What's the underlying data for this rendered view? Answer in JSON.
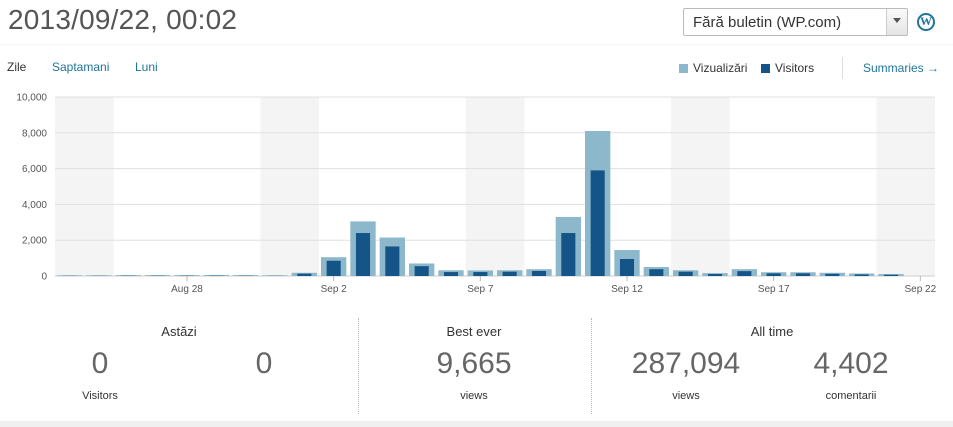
{
  "header": {
    "datetime": "2013/09/22, 00:02",
    "blog_select": "Fără buletin (WP.com)",
    "wp_icon": "wordpress-icon"
  },
  "tabs": [
    {
      "label": "Zile",
      "active": true
    },
    {
      "label": "Saptamani",
      "active": false
    },
    {
      "label": "Luni",
      "active": false
    }
  ],
  "legend": {
    "views": "Vizualizări",
    "visitors": "Visitors",
    "summaries": "Summaries"
  },
  "colors": {
    "views": "#8db7cb",
    "visitors": "#145487",
    "weekend": "#f4f4f4",
    "grid": "#e0e0e0"
  },
  "chart_data": {
    "type": "bar",
    "x_tick_labels": [
      "Aug 28",
      "Sep 2",
      "Sep 7",
      "Sep 12",
      "Sep 17",
      "Sep 22"
    ],
    "y_tick_labels": [
      "0",
      "2,000",
      "4,000",
      "6,000",
      "8,000",
      "10,000"
    ],
    "ylim": [
      0,
      10000
    ],
    "grid": true,
    "legend_placement": "top-right",
    "categories": [
      "Aug 24",
      "Aug 25",
      "Aug 26",
      "Aug 27",
      "Aug 28",
      "Aug 29",
      "Aug 30",
      "Aug 31",
      "Sep 1",
      "Sep 2",
      "Sep 3",
      "Sep 4",
      "Sep 5",
      "Sep 6",
      "Sep 7",
      "Sep 8",
      "Sep 9",
      "Sep 10",
      "Sep 11",
      "Sep 12",
      "Sep 13",
      "Sep 14",
      "Sep 15",
      "Sep 16",
      "Sep 17",
      "Sep 18",
      "Sep 19",
      "Sep 20",
      "Sep 21",
      "Sep 22"
    ],
    "series": [
      {
        "name": "Vizualizări",
        "values": [
          40,
          40,
          50,
          50,
          50,
          60,
          50,
          40,
          180,
          1050,
          3050,
          2150,
          700,
          320,
          310,
          320,
          380,
          3300,
          8100,
          1450,
          500,
          320,
          160,
          380,
          210,
          210,
          180,
          140,
          110,
          0
        ]
      },
      {
        "name": "Visitors",
        "values": [
          10,
          10,
          15,
          15,
          15,
          15,
          15,
          10,
          130,
          850,
          2400,
          1650,
          550,
          220,
          220,
          240,
          280,
          2400,
          5900,
          950,
          380,
          240,
          110,
          270,
          150,
          150,
          120,
          90,
          70,
          0
        ]
      }
    ],
    "weekend_bands": [
      [
        0,
        1
      ],
      [
        7,
        8
      ],
      [
        14,
        15
      ],
      [
        21,
        22
      ],
      [
        28,
        29
      ]
    ]
  },
  "stats": {
    "today": {
      "title": "Astăzi",
      "visitors_value": "0",
      "visitors_label": "Visitors",
      "views_value": "0"
    },
    "best": {
      "title": "Best ever",
      "value": "9,665",
      "label": "views"
    },
    "all_time": {
      "title": "All time",
      "views_value": "287,094",
      "views_label": "views",
      "comments_value": "4,402",
      "comments_label": "comentarii"
    }
  }
}
